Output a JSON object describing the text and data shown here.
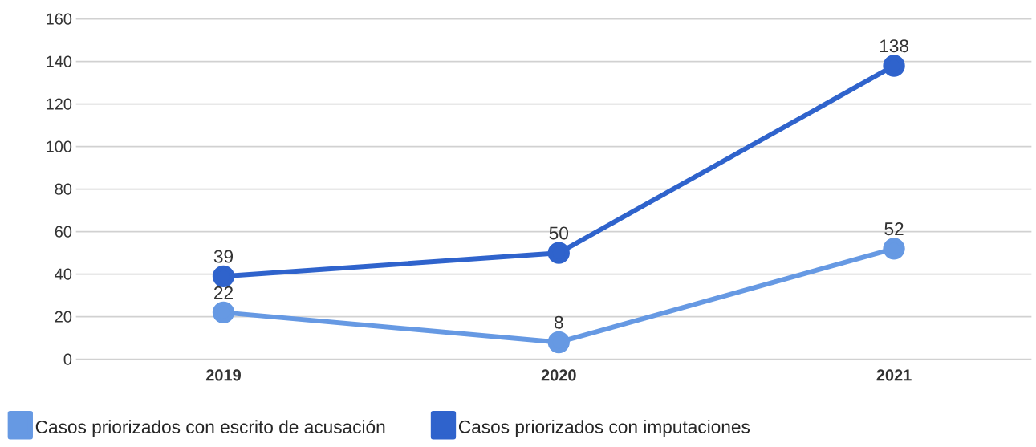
{
  "chart_data": {
    "type": "line",
    "categories": [
      "2019",
      "2020",
      "2021"
    ],
    "series": [
      {
        "name": "Casos priorizados con escrito de acusación",
        "color": "#6699e3",
        "values": [
          22,
          8,
          52
        ]
      },
      {
        "name": "Casos priorizados con imputaciones",
        "color": "#2f63cc",
        "values": [
          39,
          50,
          138
        ]
      }
    ],
    "ylim": [
      0,
      160
    ],
    "yticks": [
      0,
      20,
      40,
      60,
      80,
      100,
      120,
      140,
      160
    ],
    "grid": "y",
    "legend": "bottom",
    "marker": "circle",
    "line_style": "solid",
    "data_labels": true
  }
}
